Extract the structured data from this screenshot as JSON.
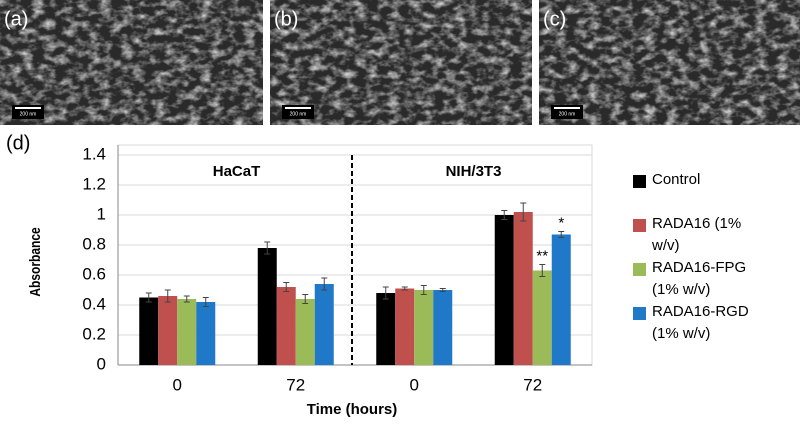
{
  "panels": [
    {
      "label": "(a)",
      "scale": "200 nm"
    },
    {
      "label": "(b)",
      "scale": "200 nm"
    },
    {
      "label": "(c)",
      "scale": "200 nm"
    }
  ],
  "chart_data": {
    "type": "bar",
    "panel_label": "(d)",
    "ylabel": "Absorbance",
    "xlabel": "Time (hours)",
    "groups": [
      "HaCaT",
      "NIH/3T3"
    ],
    "categories": [
      "0",
      "72",
      "0",
      "72"
    ],
    "ylim": [
      0,
      1.4
    ],
    "yticks": [
      0,
      0.2,
      0.4,
      0.6,
      0.8,
      1,
      1.2,
      1.4
    ],
    "grid": true,
    "legend": "right",
    "series": [
      {
        "name": "Control",
        "color": "#000000",
        "values": [
          0.45,
          0.78,
          0.48,
          1.0
        ],
        "errors": [
          0.03,
          0.04,
          0.04,
          0.03
        ],
        "value_annotations": [
          null,
          null,
          null,
          null
        ]
      },
      {
        "name": "RADA16 (1% w/v)",
        "color": "#c0504d",
        "values": [
          0.46,
          0.52,
          0.51,
          1.02
        ],
        "errors": [
          0.04,
          0.03,
          0.01,
          0.06
        ],
        "value_annotations": [
          null,
          null,
          null,
          null
        ]
      },
      {
        "name": "RADA16-FPG (1% w/v)",
        "color": "#9bbb59",
        "values": [
          0.44,
          0.44,
          0.5,
          0.63
        ],
        "errors": [
          0.02,
          0.03,
          0.03,
          0.04
        ],
        "value_annotations": [
          null,
          null,
          null,
          "**"
        ]
      },
      {
        "name": "RADA16-RGD (1% w/v)",
        "color": "#1f78c8",
        "values": [
          0.42,
          0.54,
          0.5,
          0.87
        ],
        "errors": [
          0.03,
          0.04,
          0.01,
          0.02
        ],
        "value_annotations": [
          null,
          null,
          null,
          "*"
        ]
      }
    ]
  }
}
